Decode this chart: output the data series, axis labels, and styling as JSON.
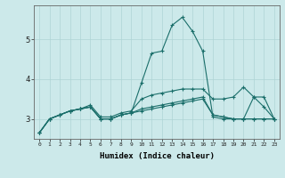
{
  "xlabel": "Humidex (Indice chaleur)",
  "ylabel": "",
  "background_color": "#cce9ea",
  "grid_color": "#aed4d5",
  "line_color": "#1a6e6a",
  "xlim": [
    -0.5,
    23.5
  ],
  "ylim": [
    2.5,
    5.85
  ],
  "yticks": [
    3,
    4,
    5
  ],
  "xticks": [
    0,
    1,
    2,
    3,
    4,
    5,
    6,
    7,
    8,
    9,
    10,
    11,
    12,
    13,
    14,
    15,
    16,
    17,
    18,
    19,
    20,
    21,
    22,
    23
  ],
  "series": [
    [
      2.65,
      3.0,
      3.1,
      3.2,
      3.25,
      3.3,
      3.0,
      3.0,
      3.1,
      3.15,
      3.9,
      4.65,
      4.7,
      5.35,
      5.55,
      5.2,
      4.7,
      3.05,
      3.0,
      3.0,
      3.0,
      3.0,
      3.0,
      3.0
    ],
    [
      2.65,
      3.0,
      3.1,
      3.2,
      3.25,
      3.35,
      3.05,
      3.05,
      3.15,
      3.2,
      3.5,
      3.6,
      3.65,
      3.7,
      3.75,
      3.75,
      3.75,
      3.5,
      3.5,
      3.55,
      3.8,
      3.55,
      3.3,
      3.0
    ],
    [
      2.65,
      3.0,
      3.1,
      3.2,
      3.25,
      3.3,
      3.0,
      3.0,
      3.1,
      3.15,
      3.2,
      3.25,
      3.3,
      3.35,
      3.4,
      3.45,
      3.5,
      3.1,
      3.05,
      3.0,
      3.0,
      3.0,
      3.0,
      3.0
    ],
    [
      2.65,
      3.0,
      3.1,
      3.2,
      3.25,
      3.3,
      3.0,
      3.0,
      3.1,
      3.15,
      3.25,
      3.3,
      3.35,
      3.4,
      3.45,
      3.5,
      3.55,
      3.1,
      3.05,
      3.0,
      3.0,
      3.55,
      3.55,
      3.0
    ]
  ]
}
